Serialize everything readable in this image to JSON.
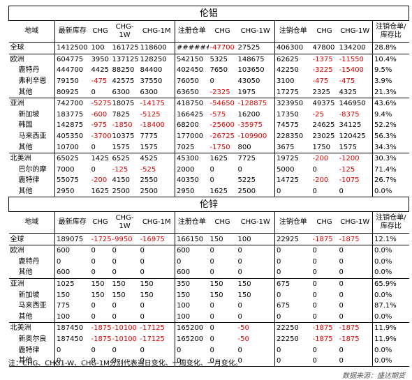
{
  "sections": [
    {
      "title": "伦铝",
      "header": [
        "地域",
        "最新库存",
        "CHG",
        "CHG-1W",
        "CHG-1M",
        "注册仓单",
        "CHG",
        "CHG-1W",
        "注销仓单",
        "CHG",
        "CHG-1W",
        "注销仓单/库存比"
      ],
      "rows": [
        [
          "全球",
          "1412500",
          "100",
          "161725",
          "118600",
          "######",
          "-47700",
          "27525",
          "406300",
          "47800",
          "134200",
          "28.8%"
        ],
        [
          "欧洲",
          "604775",
          "3950",
          "137125",
          "128250",
          "542150",
          "5325",
          "148675",
          "62625",
          "-1375",
          "-11550",
          "10.4%"
        ],
        [
          "鹿特丹",
          "444700",
          "4425",
          "88250",
          "84400",
          "402450",
          "7650",
          "103650",
          "42250",
          "-3225",
          "-15400",
          "9.5%"
        ],
        [
          "弗利辛恩",
          "79150",
          "-475",
          "42575",
          "37550",
          "76050",
          "0",
          "43050",
          "3100",
          "-475",
          "-475",
          "3.9%"
        ],
        [
          "其他",
          "80925",
          "0",
          "6300",
          "6300",
          "63650",
          "-2325",
          "1975",
          "17275",
          "2325",
          "4325",
          "21.3%"
        ],
        [
          "亚洲",
          "742700",
          "-5275",
          "18075",
          "-14175",
          "418750",
          "-54650",
          "-128875",
          "323950",
          "49375",
          "146950",
          "43.6%"
        ],
        [
          "新加坡",
          "183775",
          "-600",
          "7825",
          "-5125",
          "166425",
          "-575",
          "16200",
          "17350",
          "-25",
          "-8375",
          "9.4%"
        ],
        [
          "韩国",
          "142875",
          "-975",
          "-1850",
          "-18400",
          "68200",
          "-25600",
          "-35975",
          "74575",
          "24625",
          "34125",
          "52.2%"
        ],
        [
          "马来西亚",
          "405350",
          "-3700",
          "10375",
          "7775",
          "177000",
          "-26725",
          "-109900",
          "228350",
          "23025",
          "120425",
          "56.3%"
        ],
        [
          "其他",
          "10700",
          "0",
          "1575",
          "1575",
          "7025",
          "-1750",
          "800",
          "3675",
          "1750",
          "1575",
          "34.3%"
        ],
        [
          "北美洲",
          "65025",
          "1425",
          "6525",
          "4525",
          "45300",
          "1625",
          "7725",
          "19725",
          "-200",
          "-1200",
          "30.3%"
        ],
        [
          "巴尔的摩",
          "7000",
          "0",
          "-125",
          "-525",
          "2000",
          "0",
          "0",
          "5000",
          "0",
          "-125",
          "71.4%"
        ],
        [
          "鹿特律",
          "55075",
          "-200",
          "4150",
          "2550",
          "40350",
          "0",
          "5225",
          "14725",
          "-200",
          "-1075",
          "26.7%"
        ],
        [
          "其他",
          "2950",
          "1625",
          "2500",
          "2500",
          "2950",
          "1625",
          "2500",
          "0",
          "0",
          "0",
          "0.0%"
        ]
      ]
    },
    {
      "title": "伦锌",
      "header": [
        "地域",
        "最新库存",
        "CHG",
        "CHG-1W",
        "CHG-1M",
        "注册仓单",
        "CHG",
        "CHG-1W",
        "注销仓单",
        "CHG",
        "CHG-1W",
        "注销仓单/库存比"
      ],
      "rows": [
        [
          "全球",
          "189075",
          "-1725",
          "-9950",
          "-16975",
          "166150",
          "150",
          "100",
          "22925",
          "-1875",
          "-1875",
          "12.1%"
        ],
        [
          "欧洲",
          "600",
          "0",
          "0",
          "0",
          "600",
          "0",
          "0",
          "0",
          "0",
          "0",
          "0.0%"
        ],
        [
          "鹿特丹",
          "0",
          "0",
          "0",
          "0",
          "0",
          "0",
          "0",
          "0",
          "0",
          "0",
          "0.0%"
        ],
        [
          "其他",
          "600",
          "0",
          "0",
          "0",
          "600",
          "0",
          "0",
          "0",
          "0",
          "0",
          "0.0%"
        ],
        [
          "亚洲",
          "1025",
          "150",
          "150",
          "150",
          "350",
          "150",
          "150",
          "675",
          "0",
          "0",
          "65.9%"
        ],
        [
          "新加坡",
          "150",
          "150",
          "150",
          "150",
          "150",
          "150",
          "150",
          "0",
          "0",
          "0",
          "0.0%"
        ],
        [
          "马来西亚",
          "775",
          "0",
          "0",
          "0",
          "100",
          "0",
          "0",
          "675",
          "0",
          "0",
          "87.1%"
        ],
        [
          "其他",
          "100",
          "0",
          "0",
          "0",
          "100",
          "0",
          "0",
          "0",
          "0",
          "0",
          "0.0%"
        ],
        [
          "北美洲",
          "187450",
          "-1875",
          "-10100",
          "-17125",
          "165200",
          "0",
          "-50",
          "22250",
          "-1875",
          "-1875",
          "11.9%"
        ],
        [
          "新奥尔良",
          "187450",
          "-1875",
          "-10100",
          "-17125",
          "165200",
          "0",
          "-50",
          "22250",
          "-1875",
          "-1875",
          "11.9%"
        ],
        [
          "鹿特律",
          "0",
          "0",
          "0",
          "0",
          "0",
          "0",
          "0",
          "0",
          "0",
          "0",
          "0.0%"
        ],
        [
          "其他",
          "0",
          "0",
          "0",
          "0",
          "0",
          "0",
          "0",
          "0",
          "0",
          "0",
          "0.0%"
        ]
      ]
    }
  ],
  "footnote": "注：CHG、CHG1-W、CHG-1M分别代表当日变化、一周变化、一月变化。",
  "source": "数据来源：盛达期货"
}
